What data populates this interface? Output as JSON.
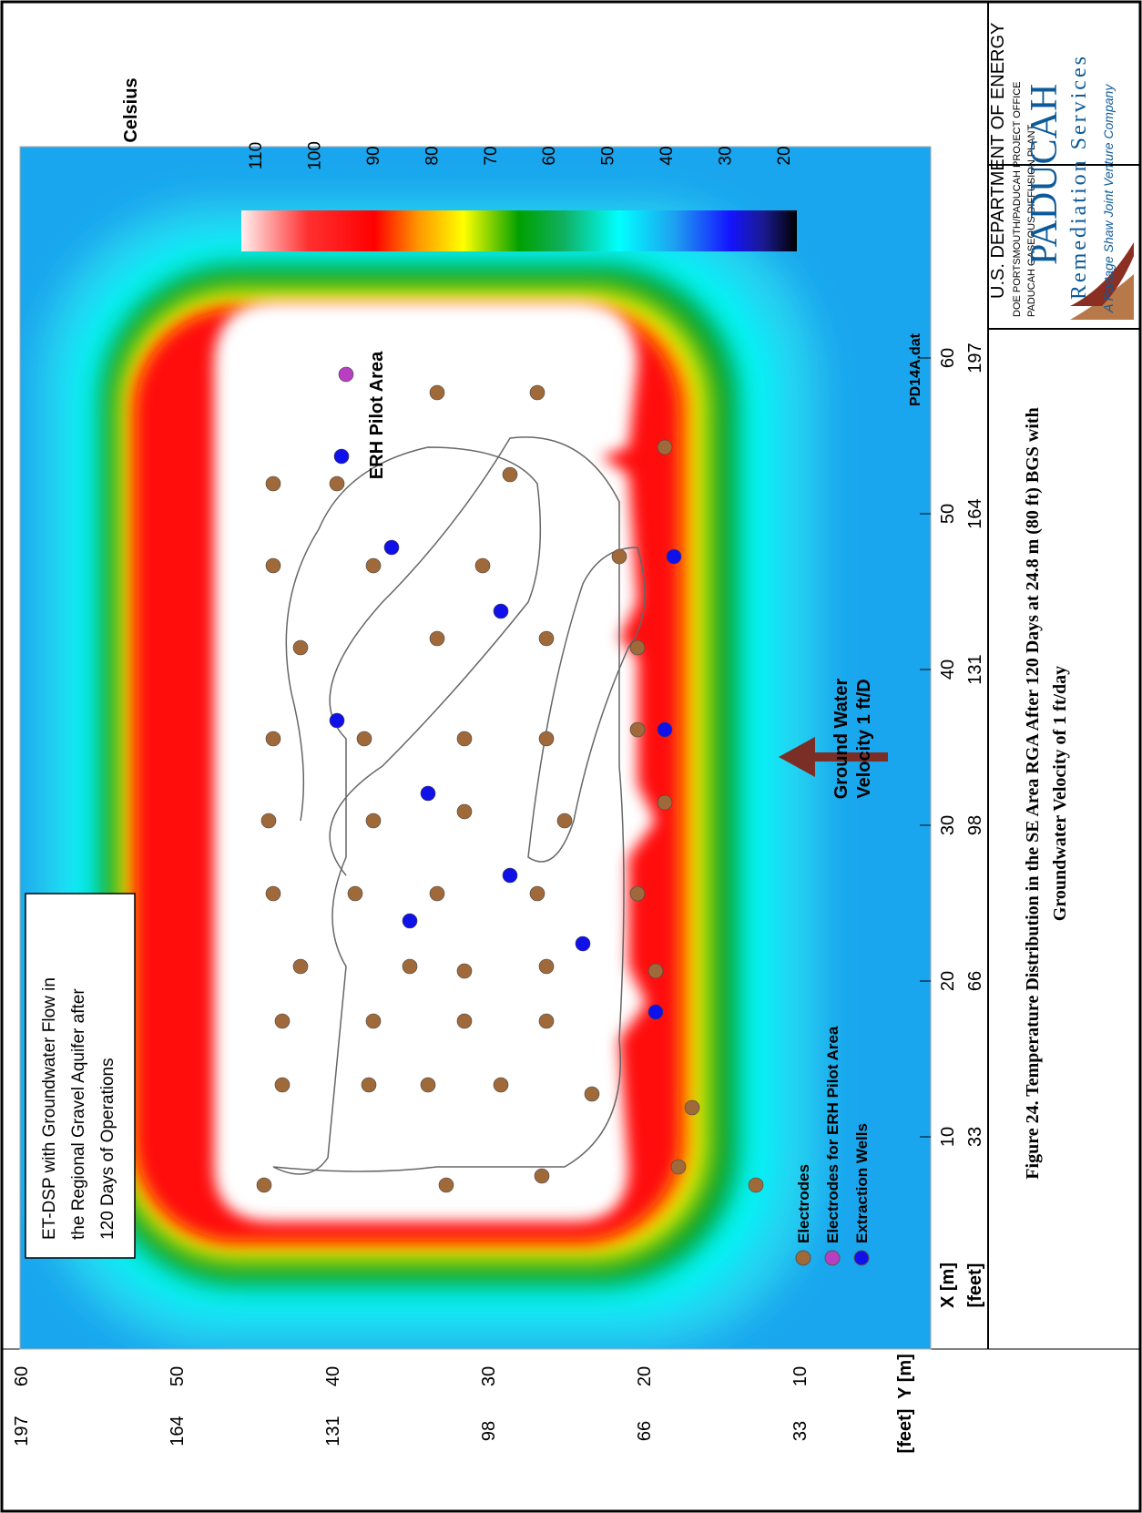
{
  "colorbar": {
    "title": "Celsius",
    "ticks": [
      "110",
      "100",
      "90",
      "80",
      "70",
      "60",
      "50",
      "40",
      "30",
      "20"
    ]
  },
  "plot": {
    "x_axis_label": "X [m]",
    "x_feet_label": "[feet]",
    "y_axis_label": "Y [m]",
    "y_feet_label": "[feet]",
    "x_ticks_m": [
      "10",
      "20",
      "30",
      "40",
      "50",
      "60"
    ],
    "x_ticks_ft": [
      "33",
      "66",
      "98",
      "131",
      "164",
      "197"
    ],
    "y_ticks_m": [
      "10",
      "20",
      "30",
      "40",
      "50",
      "60"
    ],
    "y_ticks_ft": [
      "33",
      "66",
      "98",
      "131",
      "164",
      "197"
    ],
    "dataset_label": "PD14A.dat",
    "area_label": "ERH Pilot Area",
    "gw_label_line1": "Ground Water",
    "gw_label_line2": "Velocity 1 ft/D",
    "desc_line1": "ET-DSP with Groundwater Flow in",
    "desc_line2": "the Regional Gravel Aquifer after",
    "desc_line3": "120 Days of Operations"
  },
  "legend": {
    "electrodes": "Electrodes",
    "pilot": "Electrodes for ERH Pilot Area",
    "wells": "Extraction Wells"
  },
  "doe": {
    "line1": "U.S. DEPARTMENT OF ENERGY",
    "line2": "DOE PORTSMOUTH/PADUCAH PROJECT OFFICE",
    "line3": "PADUCAH GASEOUS DIFFUSION PLANT"
  },
  "logo": {
    "name": "PADUCAH",
    "sub": "Remediation Services",
    "tag": "A Portage Shaw Joint Venture Company"
  },
  "caption": {
    "line1": "Figure 24. Temperature Distribution in the SE Area RGA After 120 Days at 24.8 m (80 ft) BGS with",
    "line2": "Groundwater Velocity of 1 ft/day"
  },
  "colors": {
    "electrode": "#a0693a",
    "pilot": "#b83fc0",
    "well": "#1010e8",
    "background_water": "#1aa6ee"
  }
}
